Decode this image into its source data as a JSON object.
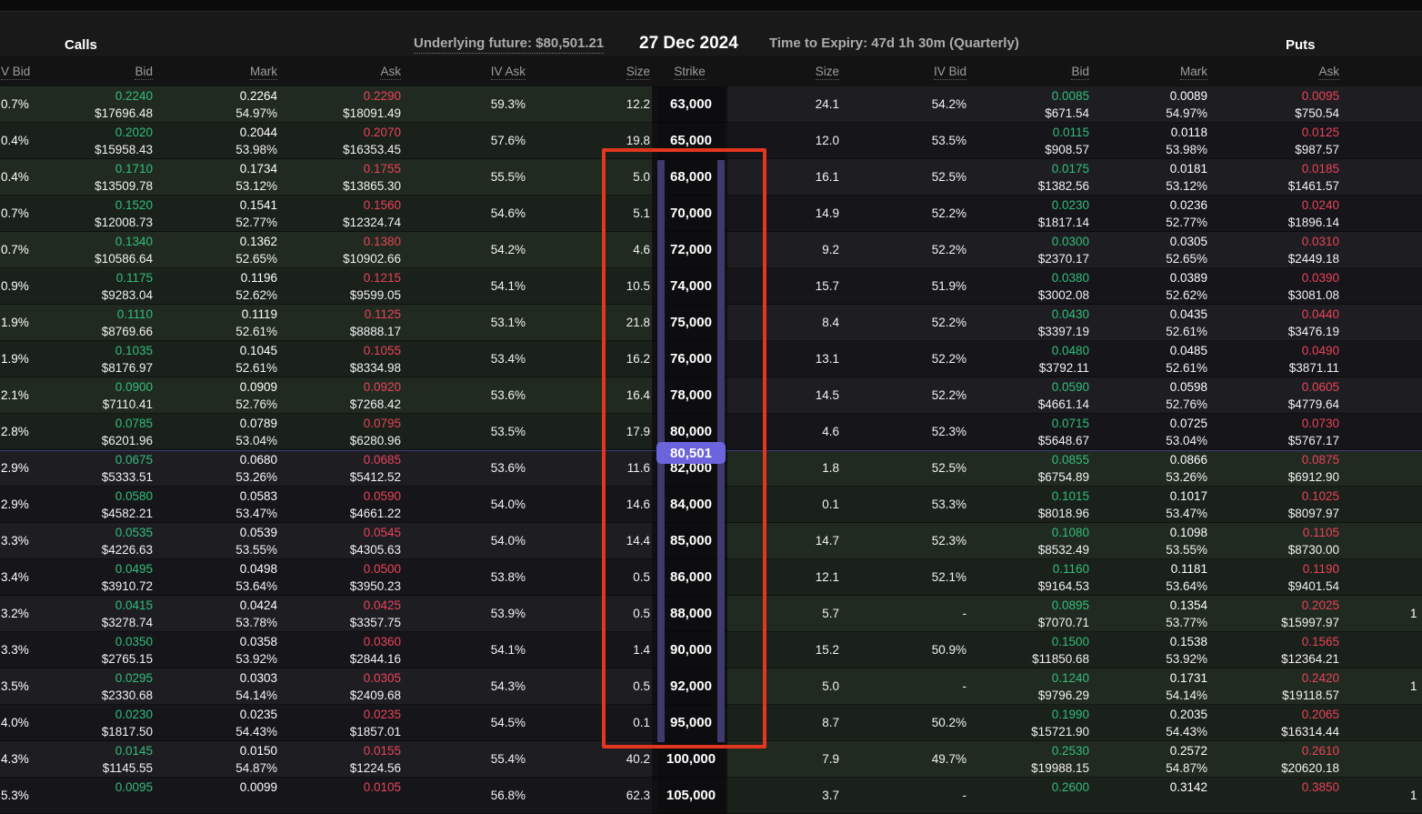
{
  "title_bar": {
    "calls_label": "Calls",
    "underlying_future": "Underlying future: $80,501.21",
    "expiry_date": "27 Dec 2024",
    "time_to_expiry": "Time to Expiry: 47d 1h 30m (Quarterly)",
    "puts_label": "Puts"
  },
  "columns": {
    "calls": [
      "V Bid",
      "Bid",
      "Mark",
      "Ask",
      "IV Ask",
      "Size"
    ],
    "strike": "Strike",
    "puts": [
      "Size",
      "IV Bid",
      "Bid",
      "Mark",
      "Ask"
    ]
  },
  "spot_marker": {
    "price": "80,501",
    "pill_color": "#6c64dd",
    "band_color": "#3e3a6e"
  },
  "annotation": {
    "type": "rectangle",
    "color": "#e2361f"
  },
  "status_colors": {
    "bid_green": "#33bd7b",
    "ask_red": "#e8435a"
  },
  "rows": [
    {
      "strike": "63,000",
      "itm": "call",
      "calls": {
        "iv_bid": "0.7%",
        "bid": "0.2240",
        "bid_usd": "$17696.48",
        "mark": "0.2264",
        "mark_iv": "54.97%",
        "ask": "0.2290",
        "ask_usd": "$18091.49",
        "iv_ask": "59.3%",
        "size": "12.2"
      },
      "puts": {
        "size": "24.1",
        "iv_bid": "54.2%",
        "bid": "0.0085",
        "bid_usd": "$671.54",
        "mark": "0.0089",
        "mark_iv": "54.97%",
        "ask": "0.0095",
        "ask_usd": "$750.54",
        "edge": ""
      }
    },
    {
      "strike": "65,000",
      "itm": "call",
      "calls": {
        "iv_bid": "0.4%",
        "bid": "0.2020",
        "bid_usd": "$15958.43",
        "mark": "0.2044",
        "mark_iv": "53.98%",
        "ask": "0.2070",
        "ask_usd": "$16353.45",
        "iv_ask": "57.6%",
        "size": "19.8"
      },
      "puts": {
        "size": "12.0",
        "iv_bid": "53.5%",
        "bid": "0.0115",
        "bid_usd": "$908.57",
        "mark": "0.0118",
        "mark_iv": "53.98%",
        "ask": "0.0125",
        "ask_usd": "$987.57",
        "edge": ""
      }
    },
    {
      "strike": "68,000",
      "itm": "call",
      "calls": {
        "iv_bid": "0.4%",
        "bid": "0.1710",
        "bid_usd": "$13509.78",
        "mark": "0.1734",
        "mark_iv": "53.12%",
        "ask": "0.1755",
        "ask_usd": "$13865.30",
        "iv_ask": "55.5%",
        "size": "5.0"
      },
      "puts": {
        "size": "16.1",
        "iv_bid": "52.5%",
        "bid": "0.0175",
        "bid_usd": "$1382.56",
        "mark": "0.0181",
        "mark_iv": "53.12%",
        "ask": "0.0185",
        "ask_usd": "$1461.57",
        "edge": ""
      }
    },
    {
      "strike": "70,000",
      "itm": "call",
      "calls": {
        "iv_bid": "0.7%",
        "bid": "0.1520",
        "bid_usd": "$12008.73",
        "mark": "0.1541",
        "mark_iv": "52.77%",
        "ask": "0.1560",
        "ask_usd": "$12324.74",
        "iv_ask": "54.6%",
        "size": "5.1"
      },
      "puts": {
        "size": "14.9",
        "iv_bid": "52.2%",
        "bid": "0.0230",
        "bid_usd": "$1817.14",
        "mark": "0.0236",
        "mark_iv": "52.77%",
        "ask": "0.0240",
        "ask_usd": "$1896.14",
        "edge": ""
      }
    },
    {
      "strike": "72,000",
      "itm": "call",
      "calls": {
        "iv_bid": "0.7%",
        "bid": "0.1340",
        "bid_usd": "$10586.64",
        "mark": "0.1362",
        "mark_iv": "52.65%",
        "ask": "0.1380",
        "ask_usd": "$10902.66",
        "iv_ask": "54.2%",
        "size": "4.6"
      },
      "puts": {
        "size": "9.2",
        "iv_bid": "52.2%",
        "bid": "0.0300",
        "bid_usd": "$2370.17",
        "mark": "0.0305",
        "mark_iv": "52.65%",
        "ask": "0.0310",
        "ask_usd": "$2449.18",
        "edge": ""
      }
    },
    {
      "strike": "74,000",
      "itm": "call",
      "calls": {
        "iv_bid": "0.9%",
        "bid": "0.1175",
        "bid_usd": "$9283.04",
        "mark": "0.1196",
        "mark_iv": "52.62%",
        "ask": "0.1215",
        "ask_usd": "$9599.05",
        "iv_ask": "54.1%",
        "size": "10.5"
      },
      "puts": {
        "size": "15.7",
        "iv_bid": "51.9%",
        "bid": "0.0380",
        "bid_usd": "$3002.08",
        "mark": "0.0389",
        "mark_iv": "52.62%",
        "ask": "0.0390",
        "ask_usd": "$3081.08",
        "edge": ""
      }
    },
    {
      "strike": "75,000",
      "itm": "call",
      "calls": {
        "iv_bid": "1.9%",
        "bid": "0.1110",
        "bid_usd": "$8769.66",
        "mark": "0.1119",
        "mark_iv": "52.61%",
        "ask": "0.1125",
        "ask_usd": "$8888.17",
        "iv_ask": "53.1%",
        "size": "21.8"
      },
      "puts": {
        "size": "8.4",
        "iv_bid": "52.2%",
        "bid": "0.0430",
        "bid_usd": "$3397.19",
        "mark": "0.0435",
        "mark_iv": "52.61%",
        "ask": "0.0440",
        "ask_usd": "$3476.19",
        "edge": ""
      }
    },
    {
      "strike": "76,000",
      "itm": "call",
      "calls": {
        "iv_bid": "1.9%",
        "bid": "0.1035",
        "bid_usd": "$8176.97",
        "mark": "0.1045",
        "mark_iv": "52.61%",
        "ask": "0.1055",
        "ask_usd": "$8334.98",
        "iv_ask": "53.4%",
        "size": "16.2"
      },
      "puts": {
        "size": "13.1",
        "iv_bid": "52.2%",
        "bid": "0.0480",
        "bid_usd": "$3792.11",
        "mark": "0.0485",
        "mark_iv": "52.61%",
        "ask": "0.0490",
        "ask_usd": "$3871.11",
        "edge": ""
      }
    },
    {
      "strike": "78,000",
      "itm": "call",
      "calls": {
        "iv_bid": "2.1%",
        "bid": "0.0900",
        "bid_usd": "$7110.41",
        "mark": "0.0909",
        "mark_iv": "52.76%",
        "ask": "0.0920",
        "ask_usd": "$7268.42",
        "iv_ask": "53.6%",
        "size": "16.4"
      },
      "puts": {
        "size": "14.5",
        "iv_bid": "52.2%",
        "bid": "0.0590",
        "bid_usd": "$4661.14",
        "mark": "0.0598",
        "mark_iv": "52.76%",
        "ask": "0.0605",
        "ask_usd": "$4779.64",
        "edge": ""
      }
    },
    {
      "strike": "80,000",
      "itm": "call",
      "calls": {
        "iv_bid": "2.8%",
        "bid": "0.0785",
        "bid_usd": "$6201.96",
        "mark": "0.0789",
        "mark_iv": "53.04%",
        "ask": "0.0795",
        "ask_usd": "$6280.96",
        "iv_ask": "53.5%",
        "size": "17.9"
      },
      "puts": {
        "size": "4.6",
        "iv_bid": "52.3%",
        "bid": "0.0715",
        "bid_usd": "$5648.67",
        "mark": "0.0725",
        "mark_iv": "53.04%",
        "ask": "0.0730",
        "ask_usd": "$5767.17",
        "edge": ""
      }
    },
    {
      "strike": "82,000",
      "itm": "put",
      "calls": {
        "iv_bid": "2.9%",
        "bid": "0.0675",
        "bid_usd": "$5333.51",
        "mark": "0.0680",
        "mark_iv": "53.26%",
        "ask": "0.0685",
        "ask_usd": "$5412.52",
        "iv_ask": "53.6%",
        "size": "11.6"
      },
      "puts": {
        "size": "1.8",
        "iv_bid": "52.5%",
        "bid": "0.0855",
        "bid_usd": "$6754.89",
        "mark": "0.0866",
        "mark_iv": "53.26%",
        "ask": "0.0875",
        "ask_usd": "$6912.90",
        "edge": ""
      }
    },
    {
      "strike": "84,000",
      "itm": "put",
      "calls": {
        "iv_bid": "2.9%",
        "bid": "0.0580",
        "bid_usd": "$4582.21",
        "mark": "0.0583",
        "mark_iv": "53.47%",
        "ask": "0.0590",
        "ask_usd": "$4661.22",
        "iv_ask": "54.0%",
        "size": "14.6"
      },
      "puts": {
        "size": "0.1",
        "iv_bid": "53.3%",
        "bid": "0.1015",
        "bid_usd": "$8018.96",
        "mark": "0.1017",
        "mark_iv": "53.47%",
        "ask": "0.1025",
        "ask_usd": "$8097.97",
        "edge": ""
      }
    },
    {
      "strike": "85,000",
      "itm": "put",
      "calls": {
        "iv_bid": "3.3%",
        "bid": "0.0535",
        "bid_usd": "$4226.63",
        "mark": "0.0539",
        "mark_iv": "53.55%",
        "ask": "0.0545",
        "ask_usd": "$4305.63",
        "iv_ask": "54.0%",
        "size": "14.4"
      },
      "puts": {
        "size": "14.7",
        "iv_bid": "52.3%",
        "bid": "0.1080",
        "bid_usd": "$8532.49",
        "mark": "0.1098",
        "mark_iv": "53.55%",
        "ask": "0.1105",
        "ask_usd": "$8730.00",
        "edge": ""
      }
    },
    {
      "strike": "86,000",
      "itm": "put",
      "calls": {
        "iv_bid": "3.4%",
        "bid": "0.0495",
        "bid_usd": "$3910.72",
        "mark": "0.0498",
        "mark_iv": "53.64%",
        "ask": "0.0500",
        "ask_usd": "$3950.23",
        "iv_ask": "53.8%",
        "size": "0.5"
      },
      "puts": {
        "size": "12.1",
        "iv_bid": "52.1%",
        "bid": "0.1160",
        "bid_usd": "$9164.53",
        "mark": "0.1181",
        "mark_iv": "53.64%",
        "ask": "0.1190",
        "ask_usd": "$9401.54",
        "edge": ""
      }
    },
    {
      "strike": "88,000",
      "itm": "put",
      "calls": {
        "iv_bid": "3.2%",
        "bid": "0.0415",
        "bid_usd": "$3278.74",
        "mark": "0.0424",
        "mark_iv": "53.78%",
        "ask": "0.0425",
        "ask_usd": "$3357.75",
        "iv_ask": "53.9%",
        "size": "0.5"
      },
      "puts": {
        "size": "5.7",
        "iv_bid": "-",
        "bid": "0.0895",
        "bid_usd": "$7070.71",
        "mark": "0.1354",
        "mark_iv": "53.77%",
        "ask": "0.2025",
        "ask_usd": "$15997.97",
        "edge": "1"
      }
    },
    {
      "strike": "90,000",
      "itm": "put",
      "calls": {
        "iv_bid": "3.3%",
        "bid": "0.0350",
        "bid_usd": "$2765.15",
        "mark": "0.0358",
        "mark_iv": "53.92%",
        "ask": "0.0360",
        "ask_usd": "$2844.16",
        "iv_ask": "54.1%",
        "size": "1.4"
      },
      "puts": {
        "size": "15.2",
        "iv_bid": "50.9%",
        "bid": "0.1500",
        "bid_usd": "$11850.68",
        "mark": "0.1538",
        "mark_iv": "53.92%",
        "ask": "0.1565",
        "ask_usd": "$12364.21",
        "edge": ""
      }
    },
    {
      "strike": "92,000",
      "itm": "put",
      "calls": {
        "iv_bid": "3.5%",
        "bid": "0.0295",
        "bid_usd": "$2330.68",
        "mark": "0.0303",
        "mark_iv": "54.14%",
        "ask": "0.0305",
        "ask_usd": "$2409.68",
        "iv_ask": "54.3%",
        "size": "0.5"
      },
      "puts": {
        "size": "5.0",
        "iv_bid": "-",
        "bid": "0.1240",
        "bid_usd": "$9796.29",
        "mark": "0.1731",
        "mark_iv": "54.14%",
        "ask": "0.2420",
        "ask_usd": "$19118.57",
        "edge": "1"
      }
    },
    {
      "strike": "95,000",
      "itm": "put",
      "calls": {
        "iv_bid": "4.0%",
        "bid": "0.0230",
        "bid_usd": "$1817.50",
        "mark": "0.0235",
        "mark_iv": "54.43%",
        "ask": "0.0235",
        "ask_usd": "$1857.01",
        "iv_ask": "54.5%",
        "size": "0.1"
      },
      "puts": {
        "size": "8.7",
        "iv_bid": "50.2%",
        "bid": "0.1990",
        "bid_usd": "$15721.90",
        "mark": "0.2035",
        "mark_iv": "54.43%",
        "ask": "0.2065",
        "ask_usd": "$16314.44",
        "edge": ""
      }
    },
    {
      "strike": "100,000",
      "itm": "put",
      "calls": {
        "iv_bid": "4.3%",
        "bid": "0.0145",
        "bid_usd": "$1145.55",
        "mark": "0.0150",
        "mark_iv": "54.87%",
        "ask": "0.0155",
        "ask_usd": "$1224.56",
        "iv_ask": "55.4%",
        "size": "40.2"
      },
      "puts": {
        "size": "7.9",
        "iv_bid": "49.7%",
        "bid": "0.2530",
        "bid_usd": "$19988.15",
        "mark": "0.2572",
        "mark_iv": "54.87%",
        "ask": "0.2610",
        "ask_usd": "$20620.18",
        "edge": ""
      }
    },
    {
      "strike": "105,000",
      "itm": "put",
      "calls": {
        "iv_bid": "5.3%",
        "bid": "0.0095",
        "bid_usd": "",
        "mark": "0.0099",
        "mark_iv": "",
        "ask": "0.0105",
        "ask_usd": "",
        "iv_ask": "56.8%",
        "size": "62.3"
      },
      "puts": {
        "size": "3.7",
        "iv_bid": "-",
        "bid": "0.2600",
        "bid_usd": "",
        "mark": "0.3142",
        "mark_iv": "",
        "ask": "0.3850",
        "ask_usd": "",
        "edge": "1"
      }
    }
  ]
}
